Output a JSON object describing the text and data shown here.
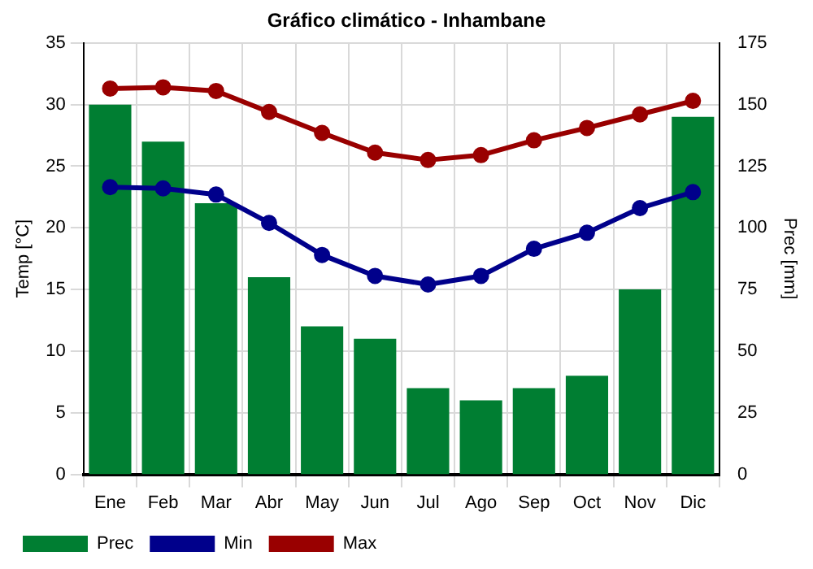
{
  "chart_data": {
    "type": "bar",
    "title": "Gráfico climático - Inhambane",
    "ylabel": "Temp [°C]",
    "y2label": "Prec [mm]",
    "categories": [
      "Ene",
      "Feb",
      "Mar",
      "Abr",
      "May",
      "Jun",
      "Jul",
      "Ago",
      "Sep",
      "Oct",
      "Nov",
      "Dic"
    ],
    "series": [
      {
        "name": "Prec",
        "axis": "y2",
        "color": "#007e32",
        "values": [
          150,
          135,
          110,
          80,
          60,
          55,
          35,
          30,
          35,
          40,
          75,
          145
        ]
      },
      {
        "name": "Min",
        "type": "line",
        "color": "#00008b",
        "values": [
          23.3,
          23.2,
          22.7,
          20.4,
          17.8,
          16.1,
          15.4,
          16.1,
          18.3,
          19.6,
          21.6,
          22.9
        ]
      },
      {
        "name": "Max",
        "type": "line",
        "color": "#990000",
        "values": [
          31.3,
          31.4,
          31.1,
          29.4,
          27.7,
          26.1,
          25.5,
          25.9,
          27.1,
          28.1,
          29.2,
          30.3
        ]
      }
    ],
    "ylim": [
      0,
      35
    ],
    "yticks": [
      0,
      5,
      10,
      15,
      20,
      25,
      30,
      35
    ],
    "y2lim": [
      0,
      175
    ],
    "y2ticks": [
      0,
      25,
      50,
      75,
      100,
      125,
      150,
      175
    ],
    "grid": true,
    "legend": "bottom left",
    "marker": "circle",
    "line_style": "solid"
  }
}
